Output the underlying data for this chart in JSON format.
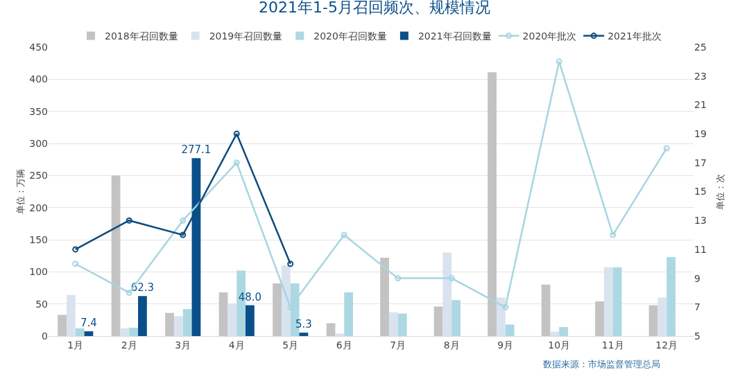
{
  "chart_data": {
    "type": "bar",
    "title": "2021年1-5月召回频次、规模情况",
    "ylabel": "单位：万辆",
    "y2label": "单位：次",
    "categories": [
      "1月",
      "2月",
      "3月",
      "4月",
      "5月",
      "6月",
      "7月",
      "8月",
      "9月",
      "10月",
      "11月",
      "12月"
    ],
    "series": [
      {
        "name": "2018年召回数量",
        "color": "#c3c3c3",
        "values": [
          33,
          250,
          36,
          68,
          82,
          20,
          122,
          46,
          411,
          80,
          54,
          48
        ]
      },
      {
        "name": "2019年召回数量",
        "color": "#d9e3f0",
        "values": [
          64,
          12,
          31,
          51,
          110,
          4,
          37,
          130,
          60,
          7,
          107,
          60
        ]
      },
      {
        "name": "2020年召回数量",
        "color": "#acd8e3",
        "values": [
          12,
          13,
          42,
          102,
          82,
          68,
          35,
          56,
          18,
          14,
          107,
          123
        ]
      },
      {
        "name": "2021年召回数量",
        "color": "#0a4f8a",
        "values": [
          7.4,
          62.3,
          277.1,
          48.0,
          5.3,
          null,
          null,
          null,
          null,
          null,
          null,
          null
        ],
        "value_labels": [
          "7.4",
          "62.3",
          "277.1",
          "48.0",
          "5.3",
          null,
          null,
          null,
          null,
          null,
          null,
          null
        ]
      },
      {
        "name": "2020年批次",
        "type": "line",
        "axis": "y2",
        "color": "#a8d5e2",
        "values": [
          10,
          8,
          13,
          17,
          7,
          12,
          9,
          9,
          7,
          24,
          12,
          18
        ]
      },
      {
        "name": "2021年批次",
        "type": "line",
        "axis": "y2",
        "color": "#0f4c7d",
        "values": [
          11,
          13,
          12,
          19,
          10,
          null,
          null,
          null,
          null,
          null,
          null,
          null
        ]
      }
    ],
    "ylim": [
      0,
      450
    ],
    "yticks": [
      0,
      50,
      100,
      150,
      200,
      250,
      300,
      350,
      400,
      450
    ],
    "y2lim": [
      5,
      25
    ],
    "y2ticks": [
      5,
      7,
      9,
      11,
      13,
      15,
      17,
      19,
      21,
      23,
      25
    ],
    "grid": "y",
    "legend": "top",
    "marker": "circle",
    "annotations": [
      "数据来源：市场监督管理总局"
    ]
  }
}
